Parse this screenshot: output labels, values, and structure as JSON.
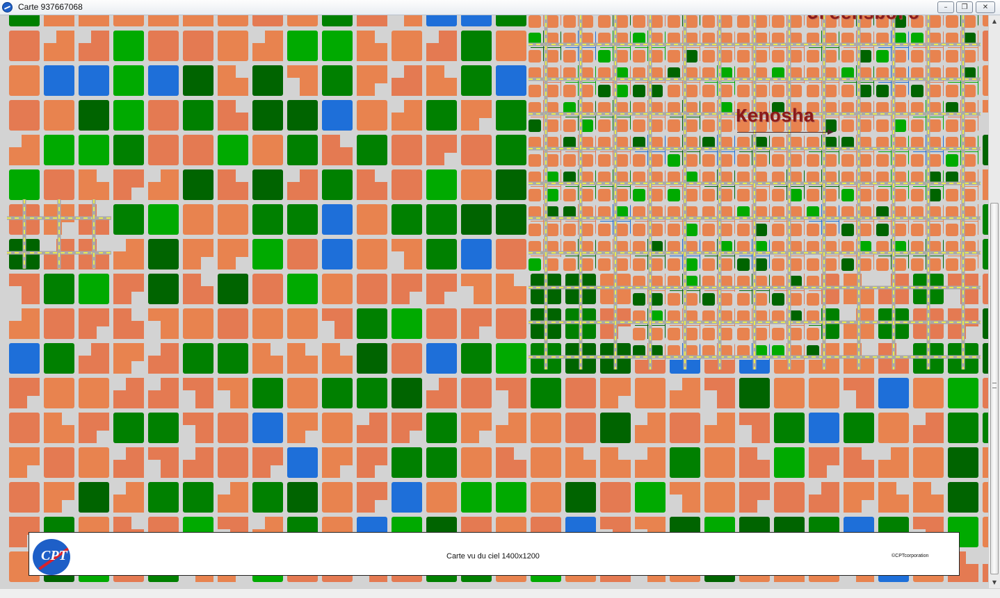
{
  "window": {
    "title": "Carte 937667068",
    "minimize_label": "–",
    "maximize_label": "❐",
    "close_label": "✕"
  },
  "map": {
    "labels": {
      "kenosha": "Kenosha",
      "greensboro": "Greensboro"
    },
    "colors": {
      "background": "#d3d3d3",
      "road": "#a9a9a9",
      "road_marking": "#ffff33",
      "residential": "#e8834f",
      "residential_alt": "#e47a52",
      "park": "#008000",
      "park_light": "#00aa00",
      "forest": "#006400",
      "water": "#1e6fd9",
      "label": "#8b1a1a"
    }
  },
  "footer": {
    "caption": "Carte vu du ciel 1400x1200",
    "copyright": "©CPTcorporation",
    "logo_text": "CPT"
  },
  "scrollbar": {
    "up_arrow": "▲",
    "down_arrow": "▼"
  }
}
